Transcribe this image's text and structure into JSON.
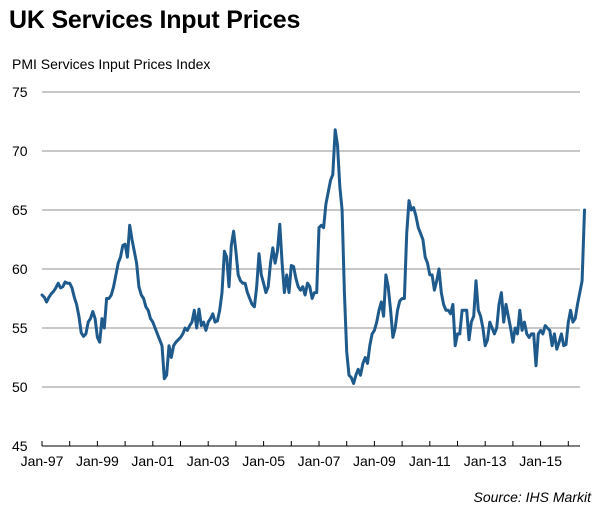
{
  "chart_data": {
    "type": "line",
    "title": "UK Services Input Prices",
    "ylabel": "PMI Services Input Prices Index",
    "xlabel": "",
    "source": "Source: IHS Markit",
    "ylim": [
      45,
      75
    ],
    "yticks": [
      45,
      50,
      55,
      60,
      65,
      70,
      75
    ],
    "grid": true,
    "legend": "none",
    "x_start": "Jan-97",
    "x_frequency": "monthly",
    "xtick_labels": [
      "Jan-97",
      "Jan-99",
      "Jan-01",
      "Jan-03",
      "Jan-05",
      "Jan-07",
      "Jan-09",
      "Jan-11",
      "Jan-13",
      "Jan-15"
    ],
    "line_color": "#1f5a8c",
    "series": [
      {
        "name": "PMI Services Input Prices Index",
        "values": [
          57.8,
          57.6,
          57.2,
          57.6,
          57.9,
          58.1,
          58.4,
          58.8,
          58.4,
          58.5,
          58.9,
          58.8,
          58.8,
          58.4,
          57.6,
          57.0,
          56.0,
          54.6,
          54.3,
          54.5,
          55.5,
          55.8,
          56.4,
          55.8,
          54.2,
          53.8,
          55.8,
          55.0,
          57.5,
          57.5,
          57.8,
          58.5,
          59.5,
          60.5,
          61.0,
          62.0,
          62.1,
          61.0,
          63.7,
          62.5,
          61.5,
          60.5,
          58.5,
          57.8,
          57.5,
          56.8,
          56.5,
          55.8,
          55.5,
          55.0,
          54.5,
          54.0,
          53.5,
          50.7,
          51.0,
          53.5,
          52.5,
          53.5,
          53.8,
          54.0,
          54.2,
          54.5,
          55.0,
          54.8,
          55.2,
          55.5,
          56.5,
          55.0,
          56.6,
          55.2,
          55.5,
          54.8,
          55.5,
          55.8,
          56.2,
          55.5,
          55.6,
          56.5,
          58.0,
          61.5,
          61.0,
          58.5,
          62.0,
          63.2,
          61.5,
          59.5,
          59.0,
          58.8,
          58.8,
          58.0,
          57.5,
          57.0,
          56.8,
          58.5,
          61.3,
          59.5,
          58.8,
          58.0,
          58.5,
          60.5,
          61.8,
          60.5,
          61.5,
          63.8,
          60.5,
          58.0,
          59.5,
          58.0,
          60.3,
          60.2,
          59.2,
          58.5,
          58.2,
          58.5,
          57.8,
          58.8,
          58.5,
          57.5,
          58.0,
          58.0,
          63.5,
          63.7,
          63.5,
          65.5,
          66.5,
          67.5,
          68.0,
          71.8,
          70.5,
          67.0,
          65.0,
          58.0,
          53.0,
          51.0,
          50.8,
          50.3,
          51.0,
          51.5,
          51.0,
          52.0,
          52.5,
          52.0,
          53.5,
          54.5,
          54.8,
          55.5,
          56.5,
          57.2,
          56.0,
          59.5,
          58.5,
          56.5,
          54.2,
          55.0,
          56.5,
          57.3,
          57.5,
          57.5,
          63.0,
          65.8,
          65.0,
          65.2,
          64.5,
          63.5,
          63.0,
          62.5,
          61.0,
          60.5,
          59.5,
          59.5,
          58.2,
          59.0,
          60.0,
          58.0,
          57.0,
          56.5,
          56.5,
          56.2,
          57.0,
          53.5,
          54.5,
          54.5,
          56.5,
          56.5,
          56.5,
          54.0,
          55.5,
          56.0,
          59.0,
          56.5,
          56.0,
          55.0,
          53.5,
          54.0,
          55.5,
          55.0,
          54.5,
          55.0,
          57.0,
          58.0,
          55.5,
          57.0,
          56.0,
          55.0,
          53.8,
          55.0,
          54.5,
          56.5,
          54.8,
          55.5,
          54.5,
          54.2,
          54.5,
          54.5,
          51.8,
          54.5,
          54.8,
          54.5,
          55.2,
          55.0,
          54.8,
          53.5,
          54.5,
          53.2,
          53.8,
          54.5,
          53.5,
          53.6,
          55.5,
          56.5,
          55.5,
          55.8,
          57.0,
          58.0,
          59.0,
          65.0
        ]
      }
    ]
  }
}
